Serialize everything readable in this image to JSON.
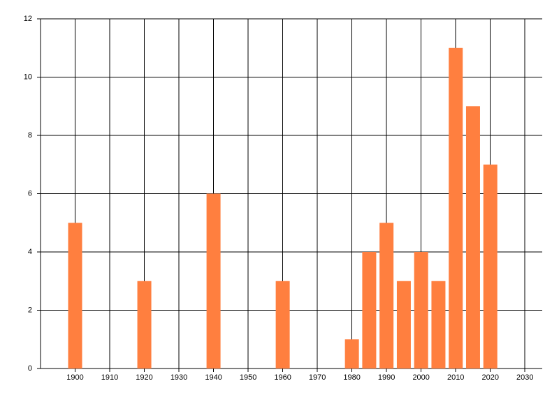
{
  "chart_data": {
    "type": "bar",
    "x": [
      1900,
      1920,
      1940,
      1960,
      1980,
      1985,
      1990,
      1995,
      2000,
      2005,
      2010,
      2015,
      2020
    ],
    "values": [
      5,
      3,
      6,
      3,
      1,
      4,
      5,
      3,
      4,
      3,
      11,
      9,
      7
    ],
    "color": "#ff7f3f",
    "xlim": [
      1890,
      2035
    ],
    "xticks": [
      1900,
      1910,
      1920,
      1930,
      1940,
      1950,
      1960,
      1970,
      1980,
      1990,
      2000,
      2010,
      2020,
      2030
    ],
    "ylim": [
      0,
      12
    ],
    "yticks": [
      0,
      2,
      4,
      6,
      8,
      10,
      12
    ],
    "grid": true
  }
}
